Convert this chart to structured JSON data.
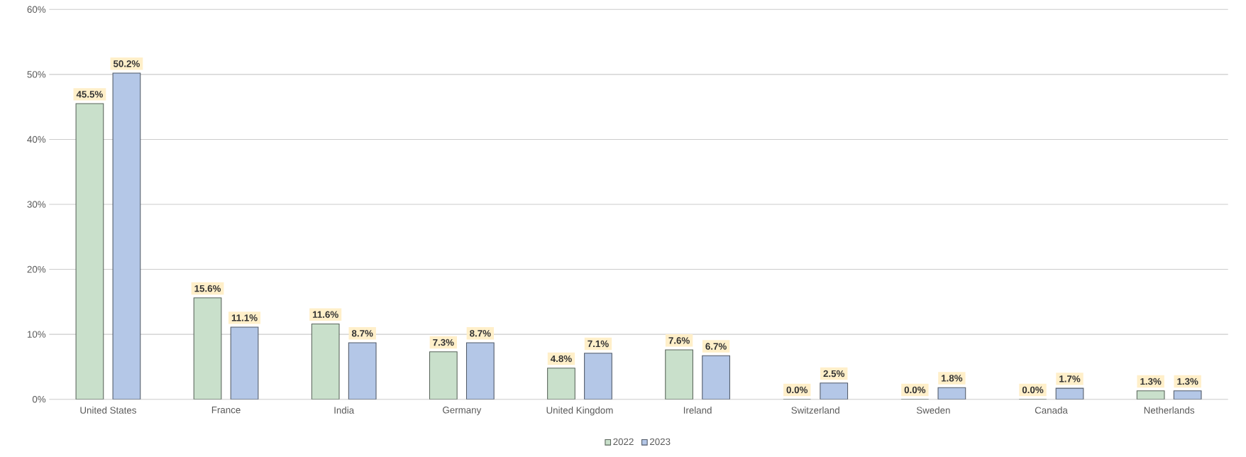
{
  "chart_data": {
    "type": "bar",
    "categories": [
      "United States",
      "France",
      "India",
      "Germany",
      "United Kingdom",
      "Ireland",
      "Switzerland",
      "Sweden",
      "Canada",
      "Netherlands"
    ],
    "series": [
      {
        "name": "2022",
        "color": "#c9e0cb",
        "values": [
          45.5,
          15.6,
          11.6,
          7.3,
          4.8,
          7.6,
          0.0,
          0.0,
          0.0,
          1.3
        ],
        "value_labels": [
          "45.5%",
          "15.6%",
          "11.6%",
          "7.3%",
          "4.8%",
          "7.6%",
          "0.0%",
          "0.0%",
          "0.0%",
          "1.3%"
        ]
      },
      {
        "name": "2023",
        "color": "#b4c7e7",
        "values": [
          50.2,
          11.1,
          8.7,
          8.7,
          7.1,
          6.7,
          2.5,
          1.8,
          1.7,
          1.3
        ],
        "value_labels": [
          "50.2%",
          "11.1%",
          "8.7%",
          "8.7%",
          "7.1%",
          "6.7%",
          "2.5%",
          "1.8%",
          "1.7%",
          "1.3%"
        ]
      }
    ],
    "ylim": [
      0,
      60
    ],
    "yticks": [
      {
        "value": 0,
        "label": "0%"
      },
      {
        "value": 10,
        "label": "10%"
      },
      {
        "value": 20,
        "label": "20%"
      },
      {
        "value": 30,
        "label": "30%"
      },
      {
        "value": 40,
        "label": "40%"
      },
      {
        "value": 50,
        "label": "50%"
      },
      {
        "value": 60,
        "label": "60%"
      }
    ],
    "grid": "y",
    "legend": "bottom"
  }
}
